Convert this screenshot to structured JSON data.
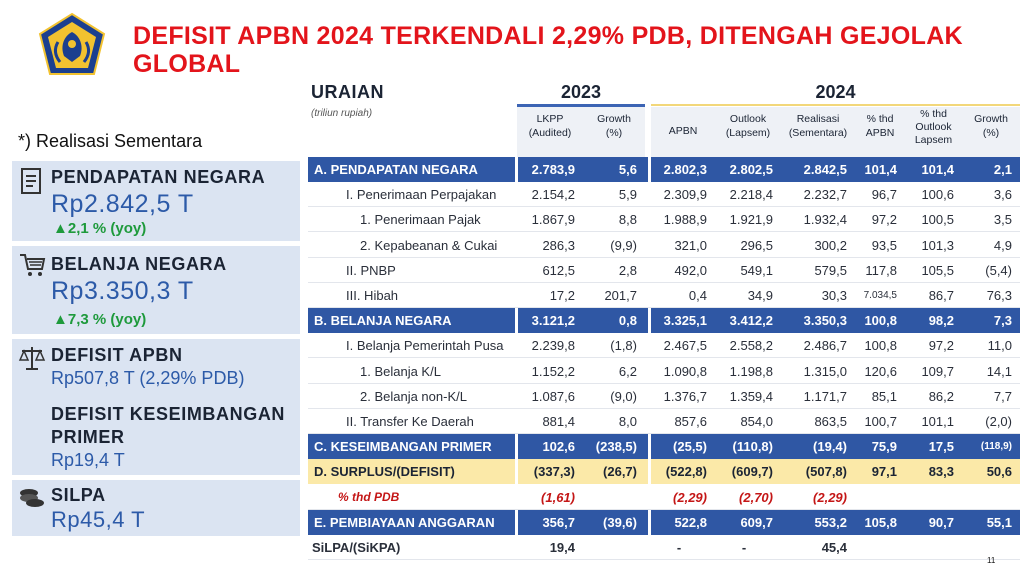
{
  "title": "DEFISIT APBN 2024 TERKENDALI 2,29% PDB, DITENGAH GEJOLAK GLOBAL",
  "footnote": "*) Realisasi Sementara",
  "cards": {
    "pendapatan": {
      "label": "PENDAPATAN NEGARA",
      "value": "Rp2.842,5 T",
      "yoy": "▲2,1 % (yoy)",
      "icon": "receipt-icon"
    },
    "belanja": {
      "label": "BELANJA NEGARA",
      "value": "Rp3.350,3 T",
      "yoy": "▲7,3 % (yoy)",
      "icon": "cart-icon"
    },
    "defisit": {
      "label": "DEFISIT APBN",
      "value": "Rp507,8 T (2,29% PDB)",
      "label2": "DEFISIT KESEIMBANGAN",
      "label2b": "PRIMER",
      "value2": "Rp19,4 T",
      "icon": "scale-icon"
    },
    "silpa": {
      "label": "SILPA",
      "value": "Rp45,4 T",
      "icon": "coins-icon"
    }
  },
  "table": {
    "uraian": "URAIAN",
    "unit": "(triliun rupiah)",
    "year1": "2023",
    "year2": "2024",
    "col_headers": [
      "LKPP\n(Audited)",
      "Growth\n(%)",
      "APBN",
      "Outlook\n(Lapsem)",
      "Realisasi\n(Sementara)",
      "% thd\nAPBN",
      "% thd\nOutlook\nLapsem",
      "Growth\n(%)"
    ],
    "rows": [
      {
        "style": "blue",
        "label": "A.   PENDAPATAN NEGARA",
        "values": [
          "2.783,9",
          "5,6",
          "2.802,3",
          "2.802,5",
          "2.842,5",
          "101,4",
          "101,4",
          "2,1"
        ]
      },
      {
        "style": "plain",
        "label": "I. Penerimaan Perpajakan",
        "indent": 1,
        "values": [
          "2.154,2",
          "5,9",
          "2.309,9",
          "2.218,4",
          "2.232,7",
          "96,7",
          "100,6",
          "3,6"
        ]
      },
      {
        "style": "plain",
        "label": "1.   Penerimaan Pajak",
        "indent": 2,
        "values": [
          "1.867,9",
          "8,8",
          "1.988,9",
          "1.921,9",
          "1.932,4",
          "97,2",
          "100,5",
          "3,5"
        ]
      },
      {
        "style": "plain",
        "label": "2.   Kepabeanan & Cukai",
        "indent": 2,
        "values": [
          "286,3",
          "(9,9)",
          "321,0",
          "296,5",
          "300,2",
          "93,5",
          "101,3",
          "4,9"
        ]
      },
      {
        "style": "plain",
        "label": "II. PNBP",
        "indent": 1,
        "values": [
          "612,5",
          "2,8",
          "492,0",
          "549,1",
          "579,5",
          "117,8",
          "105,5",
          "(5,4)"
        ]
      },
      {
        "style": "plain",
        "label": "III. Hibah",
        "indent": 1,
        "values": [
          "17,2",
          "201,7",
          "0,4",
          "34,9",
          "30,3",
          "7.034,5",
          "86,7",
          "76,3"
        ]
      },
      {
        "style": "blue",
        "label": "B.   BELANJA NEGARA",
        "values": [
          "3.121,2",
          "0,8",
          "3.325,1",
          "3.412,2",
          "3.350,3",
          "100,8",
          "98,2",
          "7,3"
        ]
      },
      {
        "style": "plain",
        "label": "I. Belanja Pemerintah Pusa",
        "indent": 1,
        "values": [
          "2.239,8",
          "(1,8)",
          "2.467,5",
          "2.558,2",
          "2.486,7",
          "100,8",
          "97,2",
          "11,0"
        ]
      },
      {
        "style": "plain",
        "label": "1.   Belanja K/L",
        "indent": 2,
        "values": [
          "1.152,2",
          "6,2",
          "1.090,8",
          "1.198,8",
          "1.315,0",
          "120,6",
          "109,7",
          "14,1"
        ]
      },
      {
        "style": "plain",
        "label": "2.   Belanja non-K/L",
        "indent": 2,
        "values": [
          "1.087,6",
          "(9,0)",
          "1.376,7",
          "1.359,4",
          "1.171,7",
          "85,1",
          "86,2",
          "7,7"
        ]
      },
      {
        "style": "plain",
        "label": "II. Transfer Ke Daerah",
        "indent": 1,
        "values": [
          "881,4",
          "8,0",
          "857,6",
          "854,0",
          "863,5",
          "100,7",
          "101,1",
          "(2,0)"
        ]
      },
      {
        "style": "blue",
        "label": "C.   KESEIMBANGAN PRIMER",
        "values": [
          "102,6",
          "(238,5)",
          "(25,5)",
          "(110,8)",
          "(19,4)",
          "75,9",
          "17,5",
          "(118,9)"
        ]
      },
      {
        "style": "yellow",
        "label": "D.   SURPLUS/(DEFISIT)",
        "values": [
          "(337,3)",
          "(26,7)",
          "(522,8)",
          "(609,7)",
          "(507,8)",
          "97,1",
          "83,3",
          "50,6"
        ]
      },
      {
        "style": "red",
        "label": "% thd PDB",
        "indent": 1,
        "values": [
          "(1,61)",
          "",
          "(2,29)",
          "(2,70)",
          "(2,29)",
          "",
          "",
          ""
        ]
      },
      {
        "style": "blue",
        "label": "E.   PEMBIAYAAN ANGGARAN",
        "values": [
          "356,7",
          "(39,6)",
          "522,8",
          "609,7",
          "553,2",
          "105,8",
          "90,7",
          "55,1"
        ]
      },
      {
        "style": "plain",
        "label": "SiLPA/(SiKPA)",
        "values": [
          "19,4",
          "",
          "-",
          "-",
          "45,4",
          "",
          "",
          ""
        ]
      }
    ]
  },
  "page_number": "11",
  "colors": {
    "title": "#e3141b",
    "accent_blue": "#2f57a4",
    "highlight_yellow": "#fbe9a8",
    "card_bg": "#dbe4f2",
    "yoy_green": "#1e9a3c"
  }
}
